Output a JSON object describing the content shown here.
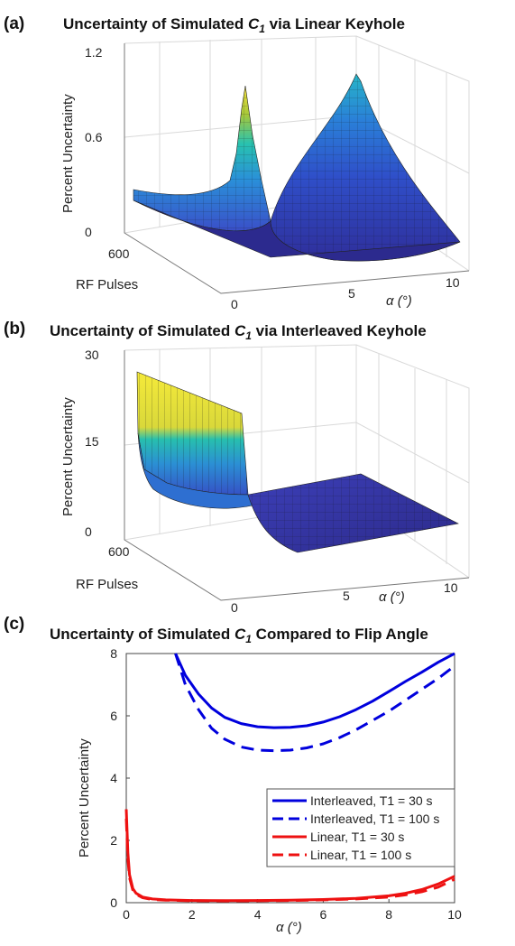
{
  "panels": [
    {
      "label": "(a)",
      "title_prefix": "Uncertainty of Simulated ",
      "title_var": "C",
      "title_sub": "1",
      "title_suffix": " via Linear Keyhole"
    },
    {
      "label": "(b)",
      "title_prefix": "Uncertainty of Simulated ",
      "title_var": "C",
      "title_sub": "1",
      "title_suffix": " via Interleaved Keyhole"
    },
    {
      "label": "(c)",
      "title_prefix": "Uncertainty of Simulated ",
      "title_var": "C",
      "title_sub": "1",
      "title_suffix": " Compared to Flip Angle"
    }
  ],
  "chart_data": [
    {
      "type": "surface",
      "title": "Uncertainty of Simulated C1 via Linear Keyhole",
      "zlabel": "Percent Uncertainty",
      "ylabel": "RF Pulses",
      "xlabel": "α (°)",
      "z_ticks": [
        "0",
        "0.6",
        "1.2"
      ],
      "y_ticks": [
        "600"
      ],
      "x_ticks": [
        "0",
        "5",
        "10"
      ],
      "zlim": [
        0,
        1.2
      ],
      "xlim": [
        0,
        10
      ],
      "ylim": [
        0,
        600
      ],
      "colormap": "parula",
      "grid": true
    },
    {
      "type": "surface",
      "title": "Uncertainty of Simulated C1 via Interleaved Keyhole",
      "zlabel": "Percent Uncertainty",
      "ylabel": "RF Pulses",
      "xlabel": "α (°)",
      "z_ticks": [
        "0",
        "15",
        "30"
      ],
      "y_ticks": [
        "600"
      ],
      "x_ticks": [
        "0",
        "5",
        "10"
      ],
      "zlim": [
        0,
        30
      ],
      "xlim": [
        0,
        10
      ],
      "ylim": [
        0,
        600
      ],
      "colormap": "parula",
      "grid": true
    },
    {
      "type": "line",
      "title": "Uncertainty of Simulated C1 Compared to Flip Angle",
      "xlabel": "α (°)",
      "ylabel": "Percent Uncertainty",
      "xlim": [
        0,
        10
      ],
      "ylim": [
        0,
        8
      ],
      "x_ticks": [
        "0",
        "2",
        "4",
        "6",
        "8",
        "10"
      ],
      "y_ticks": [
        "0",
        "2",
        "4",
        "6",
        "8"
      ],
      "legend_position": "right",
      "series": [
        {
          "name": "Interleaved, T1 = 30 s",
          "color": "#0000dd",
          "style": "solid",
          "x": [
            1.5,
            1.8,
            2.2,
            2.6,
            3.0,
            3.5,
            4.0,
            4.5,
            5.0,
            5.5,
            6.0,
            6.5,
            7.0,
            7.5,
            8.0,
            8.5,
            9.0,
            9.5,
            10.0
          ],
          "y": [
            8.0,
            7.3,
            6.7,
            6.25,
            5.95,
            5.75,
            5.65,
            5.62,
            5.63,
            5.68,
            5.8,
            5.97,
            6.2,
            6.47,
            6.78,
            7.1,
            7.4,
            7.72,
            8.05
          ]
        },
        {
          "name": "Interleaved, T1 = 100 s",
          "color": "#0000dd",
          "style": "dashed",
          "x": [
            1.5,
            1.8,
            2.2,
            2.6,
            3.0,
            3.5,
            4.0,
            4.5,
            5.0,
            5.5,
            6.0,
            6.5,
            7.0,
            7.5,
            8.0,
            8.5,
            9.0,
            9.5,
            10.0
          ],
          "y": [
            8.0,
            7.0,
            6.2,
            5.6,
            5.25,
            5.0,
            4.9,
            4.88,
            4.9,
            4.97,
            5.1,
            5.3,
            5.55,
            5.85,
            6.15,
            6.5,
            6.85,
            7.2,
            7.6
          ]
        },
        {
          "name": "Linear, T1 = 30 s",
          "color": "#ee1111",
          "style": "solid",
          "x": [
            0.0,
            0.05,
            0.1,
            0.2,
            0.3,
            0.5,
            0.8,
            1.2,
            2.0,
            3.0,
            4.0,
            5.0,
            6.0,
            7.0,
            8.0,
            8.5,
            9.0,
            9.5,
            10.0
          ],
          "y": [
            3.0,
            1.6,
            0.9,
            0.45,
            0.3,
            0.18,
            0.12,
            0.09,
            0.07,
            0.065,
            0.07,
            0.08,
            0.1,
            0.14,
            0.22,
            0.3,
            0.42,
            0.6,
            0.85
          ]
        },
        {
          "name": "Linear, T1 = 100 s",
          "color": "#ee1111",
          "style": "dashed",
          "x": [
            0.0,
            0.05,
            0.1,
            0.2,
            0.3,
            0.5,
            0.8,
            1.2,
            2.0,
            3.0,
            4.0,
            5.0,
            6.0,
            7.0,
            8.0,
            8.5,
            9.0,
            9.5,
            10.0
          ],
          "y": [
            2.7,
            1.4,
            0.8,
            0.4,
            0.27,
            0.16,
            0.1,
            0.08,
            0.06,
            0.055,
            0.06,
            0.07,
            0.09,
            0.12,
            0.18,
            0.25,
            0.35,
            0.5,
            0.75
          ]
        }
      ]
    }
  ]
}
